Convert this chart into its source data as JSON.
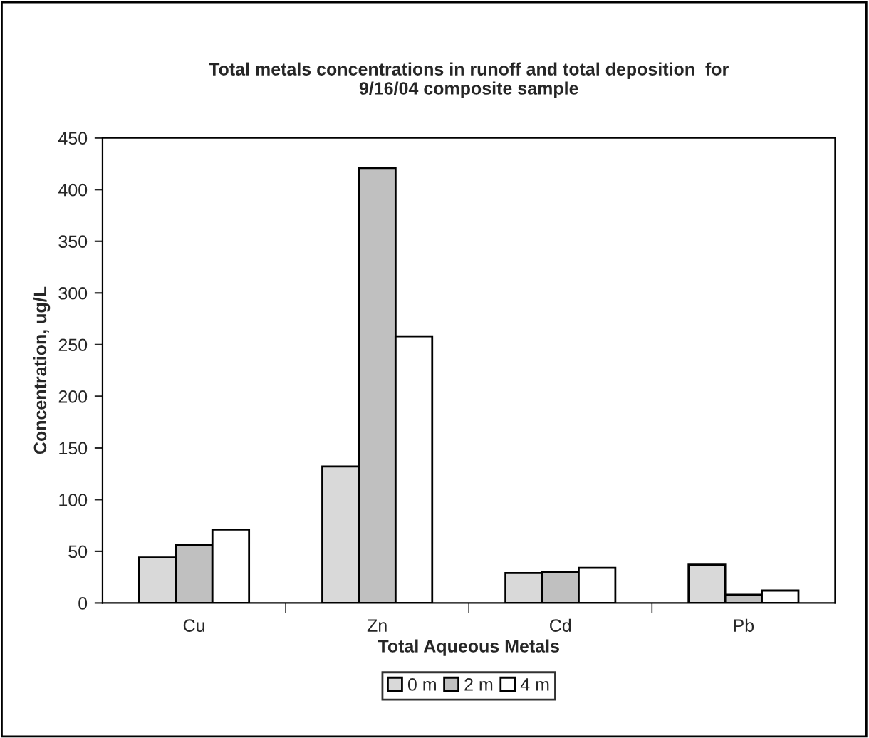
{
  "chart_data": {
    "type": "bar",
    "title": "Total metals concentrations in runoff and total deposition  for\n9/16/04 composite sample",
    "xlabel": "Total Aqueous Metals",
    "ylabel": "Concentration, ug/L",
    "categories": [
      "Cu",
      "Zn",
      "Cd",
      "Pb"
    ],
    "series": [
      {
        "name": "0 m",
        "color": "#d9d9d9",
        "values": [
          44,
          132,
          29,
          37
        ]
      },
      {
        "name": "2 m",
        "color": "#c0c0c0",
        "values": [
          56,
          421,
          30,
          8
        ]
      },
      {
        "name": "4 m",
        "color": "#ffffff",
        "values": [
          71,
          258,
          34,
          12
        ]
      }
    ],
    "ylim": [
      0,
      450
    ],
    "yticks": [
      0,
      50,
      100,
      150,
      200,
      250,
      300,
      350,
      400,
      450
    ],
    "grid": false,
    "legend": "bottom"
  }
}
